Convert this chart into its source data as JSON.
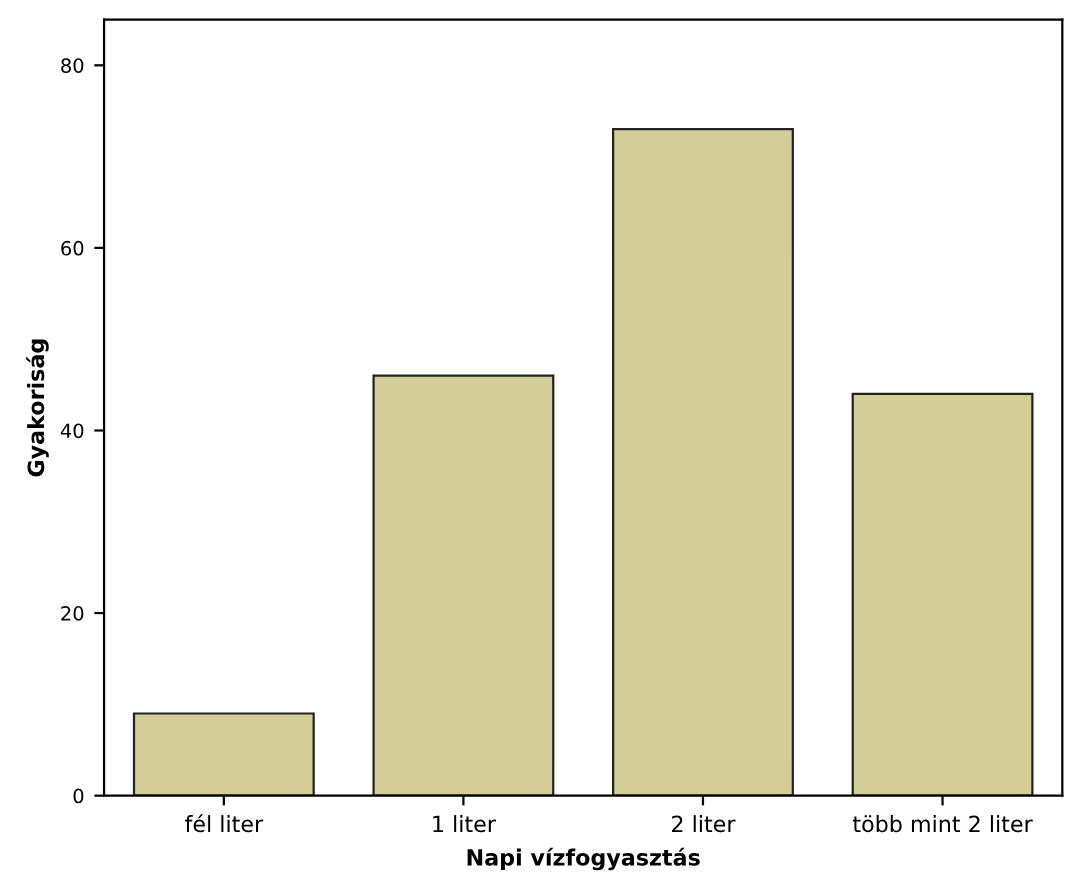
{
  "chart_data": {
    "type": "bar",
    "xlabel": "Napi vízfogyasztás",
    "ylabel": "Gyakoriság",
    "categories": [
      "fél liter",
      "1 liter",
      "2 liter",
      "több mint 2 liter"
    ],
    "values": [
      9,
      46,
      73,
      44
    ],
    "color": "#d3ce97",
    "ylim": [
      0,
      85
    ],
    "yticks": [
      0,
      20,
      40,
      60,
      80
    ],
    "grid": false
  }
}
